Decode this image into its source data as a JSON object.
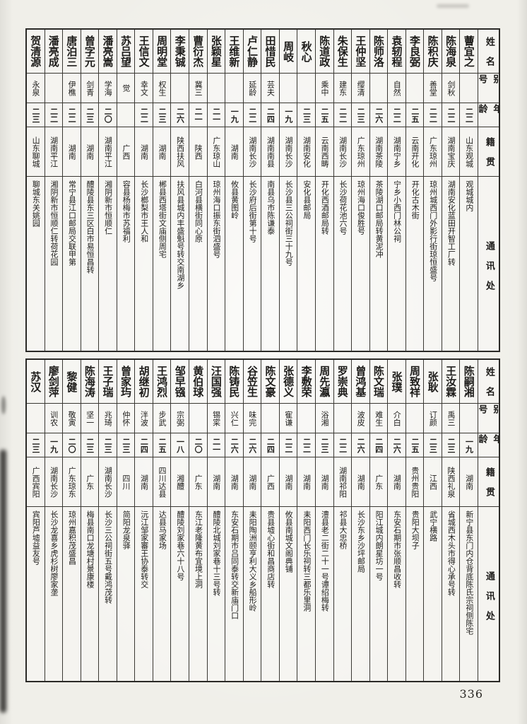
{
  "page_number": "336",
  "row_labels": {
    "name": "姓 名",
    "alias": "别 号",
    "age": "年 龄",
    "native": "籍 贯",
    "address": "通 讯 处"
  },
  "tables": [
    {
      "entries": [
        {
          "name": "蓸宜之",
          "alias": "",
          "age": "二二",
          "native": "山东观城",
          "address": "观城城内"
        },
        {
          "name": "陈海泉",
          "alias": "剑秋",
          "age": "二二",
          "native": "湖南宝庆",
          "address": "湖南安化蓝田开智工厂转"
        },
        {
          "name": "陈积庆",
          "alias": "善堂",
          "age": "二二",
          "native": "广东琼州",
          "address": "琼州城西门外影行街琼恒盛号"
        },
        {
          "name": "李良弼",
          "alias": "",
          "age": "二五",
          "native": "云南开化",
          "address": "开化古木街"
        },
        {
          "name": "袁轫程",
          "alias": "自然",
          "age": "二二",
          "native": "湖南宁乡",
          "address": "宁乡小西门林公祠"
        },
        {
          "name": "陈师洛",
          "alias": "",
          "age": "二六",
          "native": "湖南茶陵",
          "address": "茶陵湖口邮局转黄泥冲"
        },
        {
          "name": "王仲坚",
          "alias": "缨清",
          "age": "二三",
          "native": "广东琼州",
          "address": "琼州海口俊胜号"
        },
        {
          "name": "朱保生",
          "alias": "建东",
          "age": "二二",
          "native": "湖南长沙",
          "address": "长沙荷花池六号"
        },
        {
          "name": "陈道政",
          "alias": "乘中",
          "age": "二五",
          "native": "云南西畴",
          "address": "开化西酒邮局转"
        },
        {
          "name": "秋心",
          "alias": "",
          "age": "二三",
          "native": "湖南安化",
          "address": "安化县邮局"
        },
        {
          "name": "周岐",
          "alias": "",
          "age": "一九",
          "native": "湖南长沙",
          "address": "长沙县三公祠街三十九号"
        },
        {
          "name": "田惜民",
          "alias": "芸夫",
          "age": "二四",
          "native": "湖南南县",
          "address": "南县乌市陈谦泰"
        },
        {
          "name": "卢仁静",
          "alias": "延龄",
          "age": "二二",
          "native": "湖南长沙",
          "address": "长沙府后街第十号"
        },
        {
          "name": "王维新",
          "alias": "",
          "age": "一九",
          "native": "湖南",
          "address": "攸县黄图岭"
        },
        {
          "name": "张颖星",
          "alias": "",
          "age": "二一",
          "native": "广东琼山",
          "address": "琼州海口振东街泗盛号"
        },
        {
          "name": "曹衍杰",
          "alias": "冀三",
          "age": "二一",
          "native": "陕西",
          "address": "白河县横街同心原"
        },
        {
          "name": "李秉铖",
          "alias": "",
          "age": "二六",
          "native": "陕西扶风",
          "address": "扶风县城内丰盛魁号转交南湖乡"
        },
        {
          "name": "周明堂",
          "alias": "权生",
          "age": "二三",
          "native": "湖南",
          "address": "郴县西塔街文庙侧周宅"
        },
        {
          "name": "王信文",
          "alias": "幸文",
          "age": "二二",
          "native": "湖南",
          "address": "长沙榔梨市王人和"
        },
        {
          "name": "苏吕望",
          "alias": "觉",
          "age": "",
          "native": "广西",
          "address": "容县杨梅市苏福利"
        },
        {
          "name": "潘亮嵩",
          "alias": "学海",
          "age": "二〇",
          "native": "湖南平江",
          "address": "湘阴新市恒顺仁"
        },
        {
          "name": "曾字元",
          "alias": "剑青",
          "age": "二三",
          "native": "湖南",
          "address": "醴陵县东三区白市易恒昌转"
        },
        {
          "name": "唐泊三",
          "alias": "伊樵",
          "age": "二二",
          "native": "湖南",
          "address": "常宁县江口邮局交联甲第"
        },
        {
          "name": "潘亮成",
          "alias": "",
          "age": "二二",
          "native": "湖南平江",
          "address": "湘阴新市恒顺仁转荷花园"
        },
        {
          "name": "贺清源",
          "alias": "永泉",
          "age": "二三",
          "native": "山东聊城",
          "address": "聊城东关姚园"
        }
      ]
    },
    {
      "entries": [
        {
          "name": "陈嗣湘",
          "alias": "",
          "age": "一九",
          "native": "湖南",
          "address": "新宁县东门内仓背底陈氏宗祠侧陈宅"
        },
        {
          "name": "王汝霖",
          "alias": "禹三",
          "age": "二三",
          "native": "陕西礼泉",
          "address": "省城西木头市得心承号转"
        },
        {
          "name": "张耿",
          "alias": "订颜",
          "age": "二三",
          "native": "江西",
          "address": "武宁横路"
        },
        {
          "name": "周致祥",
          "alias": "",
          "age": "二五",
          "native": "贵州贵阳",
          "address": "贵阳大坝子"
        },
        {
          "name": "张璞",
          "alias": "介白",
          "age": "二六",
          "native": "湖南",
          "address": "东安石期市张顺昌收转"
        },
        {
          "name": "陈文瑞",
          "alias": "难生",
          "age": "二四",
          "native": "广东",
          "address": "阳江城内朗星坊一号"
        },
        {
          "name": "曾鸿基",
          "alias": "波皮",
          "age": "二六",
          "native": "湖南",
          "address": "长沙东乡沙坪邮局"
        },
        {
          "name": "罗崇典",
          "alias": "",
          "age": "二二",
          "native": "湖南祁阳",
          "address": "祁县大忠桥"
        },
        {
          "name": "周先瀛",
          "alias": "浴湘",
          "age": "二三",
          "native": "湖南",
          "address": "澧县老二街二十一号谭绍梅转"
        },
        {
          "name": "李敷荣",
          "alias": "",
          "age": "二二",
          "native": "湖南",
          "address": "耒阳西门长乐祠转三都乐里洞"
        },
        {
          "name": "张德义",
          "alias": "寉谦",
          "age": "二二",
          "native": "湖南",
          "address": "攸县南城文阁典铺"
        },
        {
          "name": "陈文豪",
          "alias": "",
          "age": "二四",
          "native": "广西",
          "address": "贵县墟心街和昌商店转"
        },
        {
          "name": "谷笠生",
          "alias": "味完",
          "age": "二六",
          "native": "湖南",
          "address": "耒阳陶洲颐亨利大义乡船形岭"
        },
        {
          "name": "陈铸民",
          "alias": "兴仁",
          "age": "二六",
          "native": "湖南",
          "address": "东安石期市吕同泰转交新庙门口"
        },
        {
          "name": "汪国强",
          "alias": "锡寀",
          "age": "二一",
          "native": "湖南",
          "address": "醴陵北城刘家巷十三号转"
        },
        {
          "name": "黄伯球",
          "alias": "",
          "age": "二〇",
          "native": "广东",
          "address": "东江老隆黄布宜境上洞"
        },
        {
          "name": "邹早镪",
          "alias": "宗弼",
          "age": "一八",
          "native": "湘醴",
          "address": "醴陵刘家巷六十八号"
        },
        {
          "name": "王鸿烈",
          "alias": "步武",
          "age": "二五",
          "native": "四川达县",
          "address": "达县马家场"
        },
        {
          "name": "胡继初",
          "alias": "泮波",
          "age": "二四",
          "native": "湖南",
          "address": "沅江邹家審王协泰转交"
        },
        {
          "name": "曾家玙",
          "alias": "仲怀",
          "age": "二三",
          "native": "四川",
          "address": "简阳龙泉驿"
        },
        {
          "name": "王子瑞",
          "alias": "兆琦",
          "age": "二三",
          "native": "湖南长沙",
          "address": "长沙三公祠街五号戴鸿茂转"
        },
        {
          "name": "陈海涛",
          "alias": "坚一",
          "age": "二三",
          "native": "广东",
          "address": "梅县南口龙塘村景康楼"
        },
        {
          "name": "黎健",
          "alias": "敬寅",
          "age": "二〇",
          "native": "广东琼东",
          "address": "琼州嘉积茂盛昌"
        },
        {
          "name": "廖剑萍",
          "alias": "训农",
          "age": "一九",
          "native": "湖南长沙",
          "address": "长沙龙喜乡虎杉树廖家垄"
        },
        {
          "name": "苏汉",
          "alias": "",
          "age": "二三",
          "native": "广西宾阳",
          "address": "宾阳芦墟益友号"
        }
      ]
    }
  ]
}
